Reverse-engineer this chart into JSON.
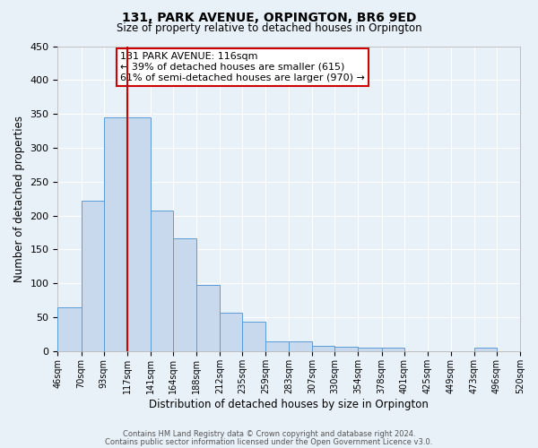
{
  "title": "131, PARK AVENUE, ORPINGTON, BR6 9ED",
  "subtitle": "Size of property relative to detached houses in Orpington",
  "xlabel": "Distribution of detached houses by size in Orpington",
  "ylabel": "Number of detached properties",
  "bin_labels": [
    "46sqm",
    "70sqm",
    "93sqm",
    "117sqm",
    "141sqm",
    "164sqm",
    "188sqm",
    "212sqm",
    "235sqm",
    "259sqm",
    "283sqm",
    "307sqm",
    "330sqm",
    "354sqm",
    "378sqm",
    "401sqm",
    "425sqm",
    "449sqm",
    "473sqm",
    "496sqm",
    "520sqm"
  ],
  "bin_edges": [
    46,
    70,
    93,
    117,
    141,
    164,
    188,
    212,
    235,
    259,
    283,
    307,
    330,
    354,
    378,
    401,
    425,
    449,
    473,
    496,
    520
  ],
  "bar_heights": [
    65,
    222,
    345,
    345,
    208,
    167,
    98,
    57,
    43,
    15,
    14,
    8,
    6,
    5,
    5,
    0,
    0,
    0,
    5,
    0
  ],
  "bar_color": "#c8d9ee",
  "bar_edge_color": "#5b9bd5",
  "ylim": [
    0,
    450
  ],
  "yticks": [
    0,
    50,
    100,
    150,
    200,
    250,
    300,
    350,
    400,
    450
  ],
  "vline_x": 117,
  "vline_color": "#cc0000",
  "annotation_line1": "131 PARK AVENUE: 116sqm",
  "annotation_line2": "← 39% of detached houses are smaller (615)",
  "annotation_line3": "61% of semi-detached houses are larger (970) →",
  "annotation_box_color": "#ffffff",
  "annotation_box_edge": "#cc0000",
  "footer_line1": "Contains HM Land Registry data © Crown copyright and database right 2024.",
  "footer_line2": "Contains public sector information licensed under the Open Government Licence v3.0.",
  "bg_color": "#e8f0f8",
  "plot_bg_color": "#e8f0f8",
  "grid_color": "#ffffff"
}
